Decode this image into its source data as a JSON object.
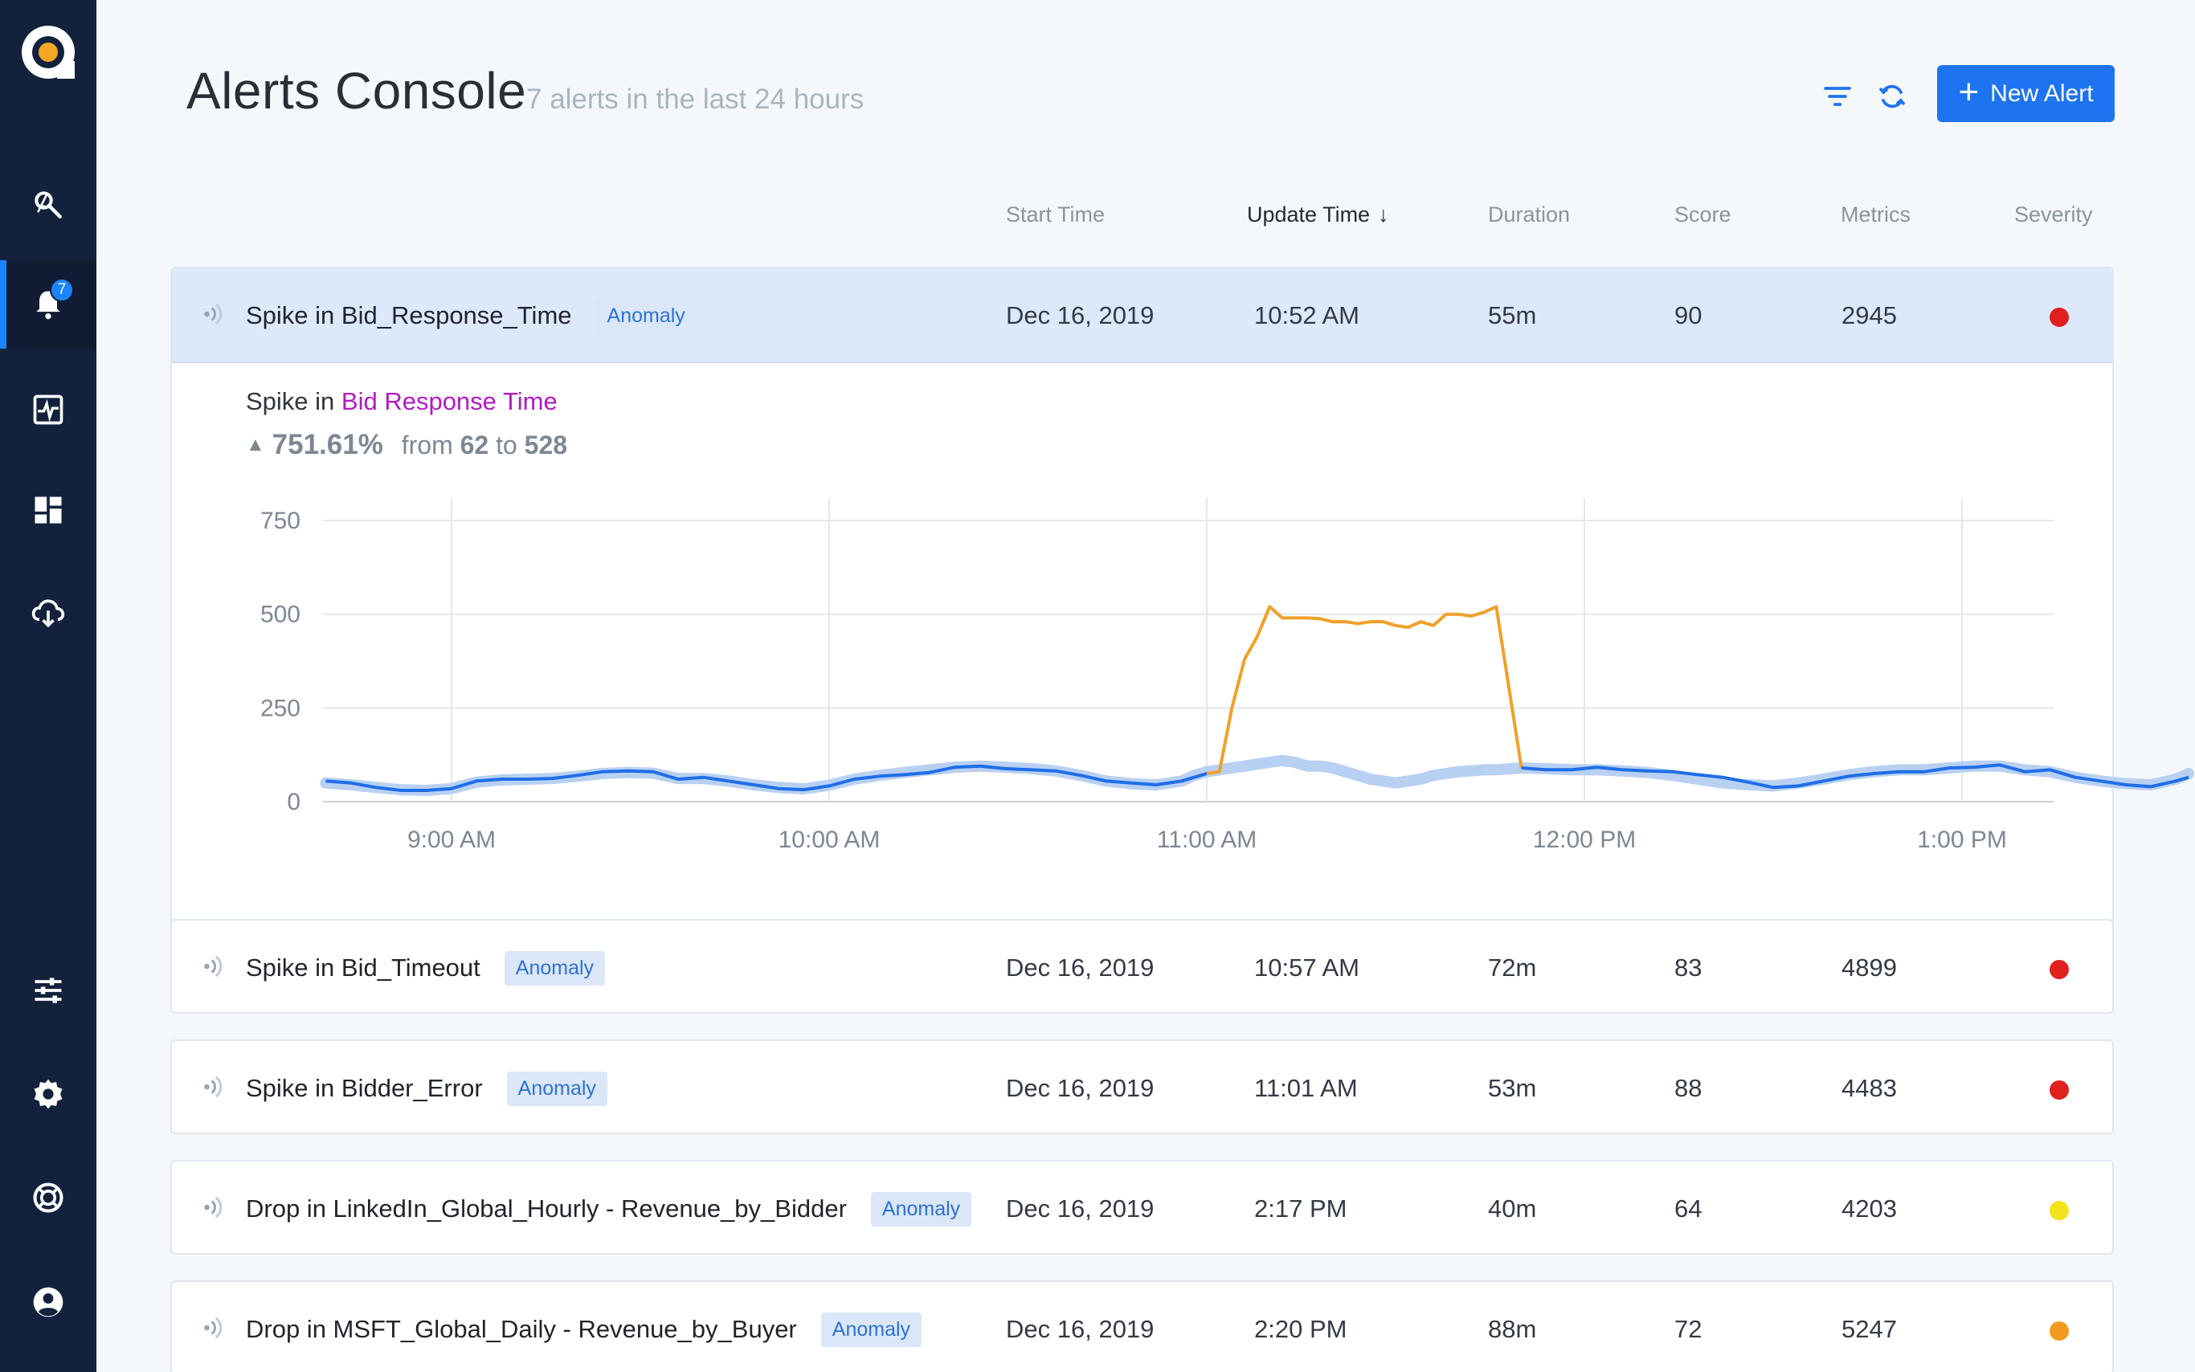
{
  "app": {
    "title": "Alerts Console",
    "subtitle": "7 alerts in the last 24 hours",
    "new_alert_label": "New Alert",
    "accent": "#1e74f0",
    "sidebar_bg": "#12223c"
  },
  "sidebar": {
    "badge_count": "7",
    "items": [
      {
        "icon": "explore-icon"
      },
      {
        "icon": "bell-icon",
        "active": true
      },
      {
        "icon": "activity-icon"
      },
      {
        "icon": "dashboard-icon"
      },
      {
        "icon": "cloud-upload-icon"
      },
      {
        "icon": "sliders-icon"
      },
      {
        "icon": "gear-icon"
      },
      {
        "icon": "help-ring-icon"
      },
      {
        "icon": "user-icon"
      }
    ]
  },
  "columns": {
    "start_time": "Start Time",
    "update_time": "Update Time",
    "duration": "Duration",
    "score": "Score",
    "metrics": "Metrics",
    "severity": "Severity"
  },
  "alerts": [
    {
      "name": "Spike in Bid_Response_Time",
      "type": "Anomaly",
      "start": "Dec 16, 2019",
      "update": "10:52 AM",
      "duration": "55m",
      "score": "90",
      "metrics": "2945",
      "severity": "#e0201f"
    },
    {
      "name": "Spike in Bid_Timeout",
      "type": "Anomaly",
      "start": "Dec 16, 2019",
      "update": "10:57 AM",
      "duration": "72m",
      "score": "83",
      "metrics": "4899",
      "severity": "#e0201f"
    },
    {
      "name": "Spike in Bidder_Error",
      "type": "Anomaly",
      "start": "Dec 16, 2019",
      "update": "11:01 AM",
      "duration": "53m",
      "score": "88",
      "metrics": "4483",
      "severity": "#e0201f"
    },
    {
      "name": "Drop in LinkedIn_Global_Hourly - Revenue_by_Bidder",
      "type": "Anomaly",
      "start": "Dec 16, 2019",
      "update": "2:17 PM",
      "duration": "40m",
      "score": "64",
      "metrics": "4203",
      "severity": "#f2e21a"
    },
    {
      "name": "Drop in MSFT_Global_Daily - Revenue_by_Buyer",
      "type": "Anomaly",
      "start": "Dec 16, 2019",
      "update": "2:20 PM",
      "duration": "88m",
      "score": "72",
      "metrics": "5247",
      "severity": "#f39a1e"
    }
  ],
  "detail": {
    "prefix": "Spike in ",
    "metric": "Bid Response Time",
    "change_pct": "751.61%",
    "from_label": "from",
    "from_value": "62",
    "to_label": "to",
    "to_value": "528"
  },
  "chart_data": {
    "type": "line",
    "title": "",
    "xlabel": "",
    "ylabel": "",
    "ylim": [
      0,
      750
    ],
    "yticks": [
      "750",
      "500",
      "250",
      "0"
    ],
    "xticks": [
      "9:00 AM",
      "10:00 AM",
      "11:00 AM",
      "12:00 PM",
      "1:00 PM"
    ],
    "grid": true,
    "x_minutes_after_9am": [
      -20,
      -16,
      -12,
      -8,
      -4,
      0,
      4,
      8,
      12,
      16,
      20,
      24,
      28,
      32,
      36,
      40,
      44,
      48,
      52,
      56,
      60,
      64,
      68,
      72,
      76,
      80,
      84,
      88,
      92,
      96,
      100,
      104,
      108,
      112,
      116,
      118,
      120,
      122,
      124,
      126,
      128,
      130,
      132,
      134,
      136,
      138,
      140,
      142,
      144,
      146,
      148,
      150,
      152,
      154,
      156,
      158,
      160,
      162,
      164,
      166,
      170,
      174,
      178,
      182,
      186,
      190,
      194,
      198,
      202,
      206,
      210,
      214,
      218,
      222,
      226,
      230,
      234,
      238,
      242,
      246,
      250,
      254,
      258,
      262,
      266,
      270,
      274,
      276
    ],
    "series": [
      {
        "name": "actual",
        "color": "#1f6ee8",
        "values": [
          55,
          50,
          38,
          30,
          30,
          35,
          55,
          60,
          60,
          62,
          70,
          80,
          82,
          80,
          60,
          65,
          55,
          45,
          35,
          32,
          42,
          60,
          68,
          72,
          78,
          92,
          95,
          88,
          85,
          82,
          70,
          55,
          50,
          45,
          55,
          65,
          75,
          80,
          250,
          380,
          440,
          520,
          490,
          490,
          490,
          488,
          480,
          480,
          475,
          480,
          480,
          470,
          465,
          480,
          470,
          500,
          500,
          495,
          505,
          520,
          90,
          85,
          85,
          92,
          85,
          82,
          80,
          72,
          65,
          52,
          38,
          42,
          55,
          68,
          75,
          80,
          80,
          90,
          92,
          98,
          80,
          85,
          65,
          55,
          45,
          40,
          55,
          65
        ]
      },
      {
        "name": "baseline",
        "color": "#b8d0f2",
        "values": [
          50,
          45,
          38,
          32,
          30,
          35,
          52,
          58,
          60,
          62,
          68,
          75,
          78,
          76,
          62,
          62,
          55,
          45,
          38,
          34,
          44,
          60,
          70,
          78,
          85,
          92,
          95,
          92,
          88,
          82,
          70,
          55,
          48,
          45,
          55,
          70,
          80,
          85,
          90,
          95,
          100,
          105,
          110,
          105,
          95,
          95,
          90,
          80,
          70,
          60,
          55,
          50,
          55,
          60,
          70,
          75,
          80,
          82,
          85,
          85,
          90,
          88,
          85,
          85,
          82,
          78,
          70,
          60,
          50,
          45,
          42,
          50,
          60,
          72,
          80,
          85,
          85,
          90,
          95,
          95,
          85,
          80,
          65,
          55,
          48,
          45,
          60,
          75
        ]
      }
    ]
  }
}
